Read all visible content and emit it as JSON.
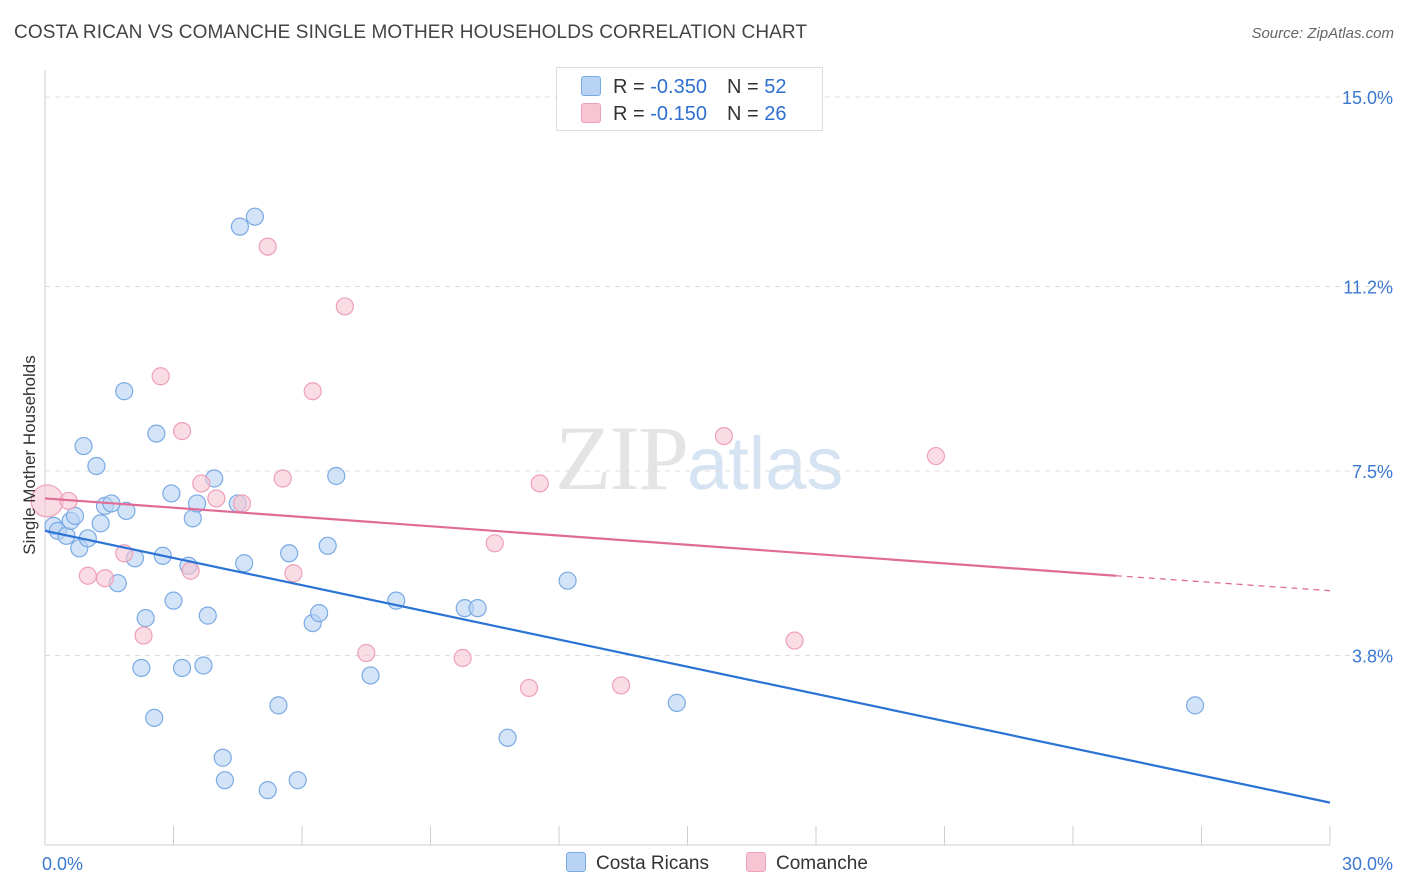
{
  "header": {
    "title": "COSTA RICAN VS COMANCHE SINGLE MOTHER HOUSEHOLDS CORRELATION CHART",
    "source": "Source: ZipAtlas.com"
  },
  "watermark": {
    "zip": "ZIP",
    "atlas": "atlas"
  },
  "legend": {
    "rows": [
      {
        "r_label": "R = ",
        "r_value": "-0.350",
        "n_label": "N = ",
        "n_value": "52",
        "color": "#b7d2f3"
      },
      {
        "r_label": "R = ",
        "r_value": " -0.150",
        "n_label": "N = ",
        "n_value": "26",
        "color": "#f7c4d3"
      }
    ]
  },
  "bottom_legend": [
    {
      "label": "Costa Ricans",
      "color": "#b7d2f3"
    },
    {
      "label": "Comanche",
      "color": "#f7c4d3"
    }
  ],
  "chart_data": {
    "type": "scatter",
    "title": "COSTA RICAN VS COMANCHE SINGLE MOTHER HOUSEHOLDS CORRELATION CHART",
    "xlabel": "",
    "ylabel": "Single Mother Households",
    "xlim": [
      0,
      30
    ],
    "ylim": [
      0,
      15.5
    ],
    "x_tick_labels": [
      "0.0%",
      "30.0%"
    ],
    "y_ticks": [
      3.8,
      7.5,
      11.2,
      15.0
    ],
    "y_tick_labels": [
      "3.8%",
      "7.5%",
      "11.2%",
      "15.0%"
    ],
    "grid": true,
    "legend_position": "top-center",
    "series": [
      {
        "name": "Costa Ricans",
        "color": "#b7d2f3",
        "stroke": "#7aaae4",
        "line_color": "#2b73d4",
        "trend": {
          "x": [
            0,
            30
          ],
          "y": [
            6.3,
            0.85
          ]
        },
        "points": [
          [
            0.2,
            6.4
          ],
          [
            0.3,
            6.3
          ],
          [
            0.5,
            6.2
          ],
          [
            0.6,
            6.5
          ],
          [
            0.7,
            6.6
          ],
          [
            0.8,
            5.95
          ],
          [
            0.9,
            8.0
          ],
          [
            1.0,
            6.15
          ],
          [
            1.2,
            7.6
          ],
          [
            1.3,
            6.45
          ],
          [
            1.4,
            6.8
          ],
          [
            1.55,
            6.85
          ],
          [
            1.7,
            5.25
          ],
          [
            1.9,
            6.7
          ],
          [
            2.1,
            5.75
          ],
          [
            1.85,
            9.1
          ],
          [
            2.25,
            3.55
          ],
          [
            2.35,
            4.55
          ],
          [
            2.55,
            2.55
          ],
          [
            2.6,
            8.25
          ],
          [
            2.75,
            5.8
          ],
          [
            2.95,
            7.05
          ],
          [
            3.0,
            4.9
          ],
          [
            3.2,
            3.55
          ],
          [
            3.35,
            5.6
          ],
          [
            3.45,
            6.55
          ],
          [
            3.55,
            6.85
          ],
          [
            3.7,
            3.6
          ],
          [
            3.8,
            4.6
          ],
          [
            3.95,
            7.35
          ],
          [
            4.15,
            1.75
          ],
          [
            4.2,
            1.3
          ],
          [
            4.5,
            6.85
          ],
          [
            4.55,
            12.4
          ],
          [
            4.65,
            5.65
          ],
          [
            4.9,
            12.6
          ],
          [
            5.2,
            1.1
          ],
          [
            5.45,
            2.8
          ],
          [
            5.7,
            5.85
          ],
          [
            5.9,
            1.3
          ],
          [
            6.25,
            4.45
          ],
          [
            6.4,
            4.65
          ],
          [
            6.6,
            6.0
          ],
          [
            6.8,
            7.4
          ],
          [
            7.6,
            3.4
          ],
          [
            8.2,
            4.9
          ],
          [
            9.8,
            4.75
          ],
          [
            10.1,
            4.75
          ],
          [
            10.8,
            2.15
          ],
          [
            12.2,
            5.3
          ],
          [
            14.75,
            2.85
          ],
          [
            26.85,
            2.8
          ]
        ]
      },
      {
        "name": "Comanche",
        "color": "#f7c4d3",
        "stroke": "#eea0b8",
        "line_color": "#e06c95",
        "trend": {
          "x": [
            0,
            25
          ],
          "y": [
            6.95,
            5.4
          ]
        },
        "trend_dashed": {
          "x": [
            25,
            30
          ],
          "y": [
            5.4,
            5.1
          ]
        },
        "points": [
          [
            0.05,
            6.9
          ],
          [
            0.55,
            6.9
          ],
          [
            1.0,
            5.4
          ],
          [
            1.4,
            5.35
          ],
          [
            1.85,
            5.85
          ],
          [
            2.3,
            4.2
          ],
          [
            2.7,
            9.4
          ],
          [
            3.2,
            8.3
          ],
          [
            3.4,
            5.5
          ],
          [
            3.65,
            7.25
          ],
          [
            4.0,
            6.95
          ],
          [
            4.6,
            6.85
          ],
          [
            5.2,
            12.0
          ],
          [
            5.55,
            7.35
          ],
          [
            5.8,
            5.45
          ],
          [
            6.25,
            9.1
          ],
          [
            7.0,
            10.8
          ],
          [
            7.5,
            3.85
          ],
          [
            9.75,
            3.75
          ],
          [
            10.5,
            6.05
          ],
          [
            11.3,
            3.15
          ],
          [
            11.55,
            7.25
          ],
          [
            13.45,
            3.2
          ],
          [
            15.85,
            8.2
          ],
          [
            17.5,
            4.1
          ],
          [
            20.8,
            7.8
          ]
        ]
      }
    ]
  }
}
